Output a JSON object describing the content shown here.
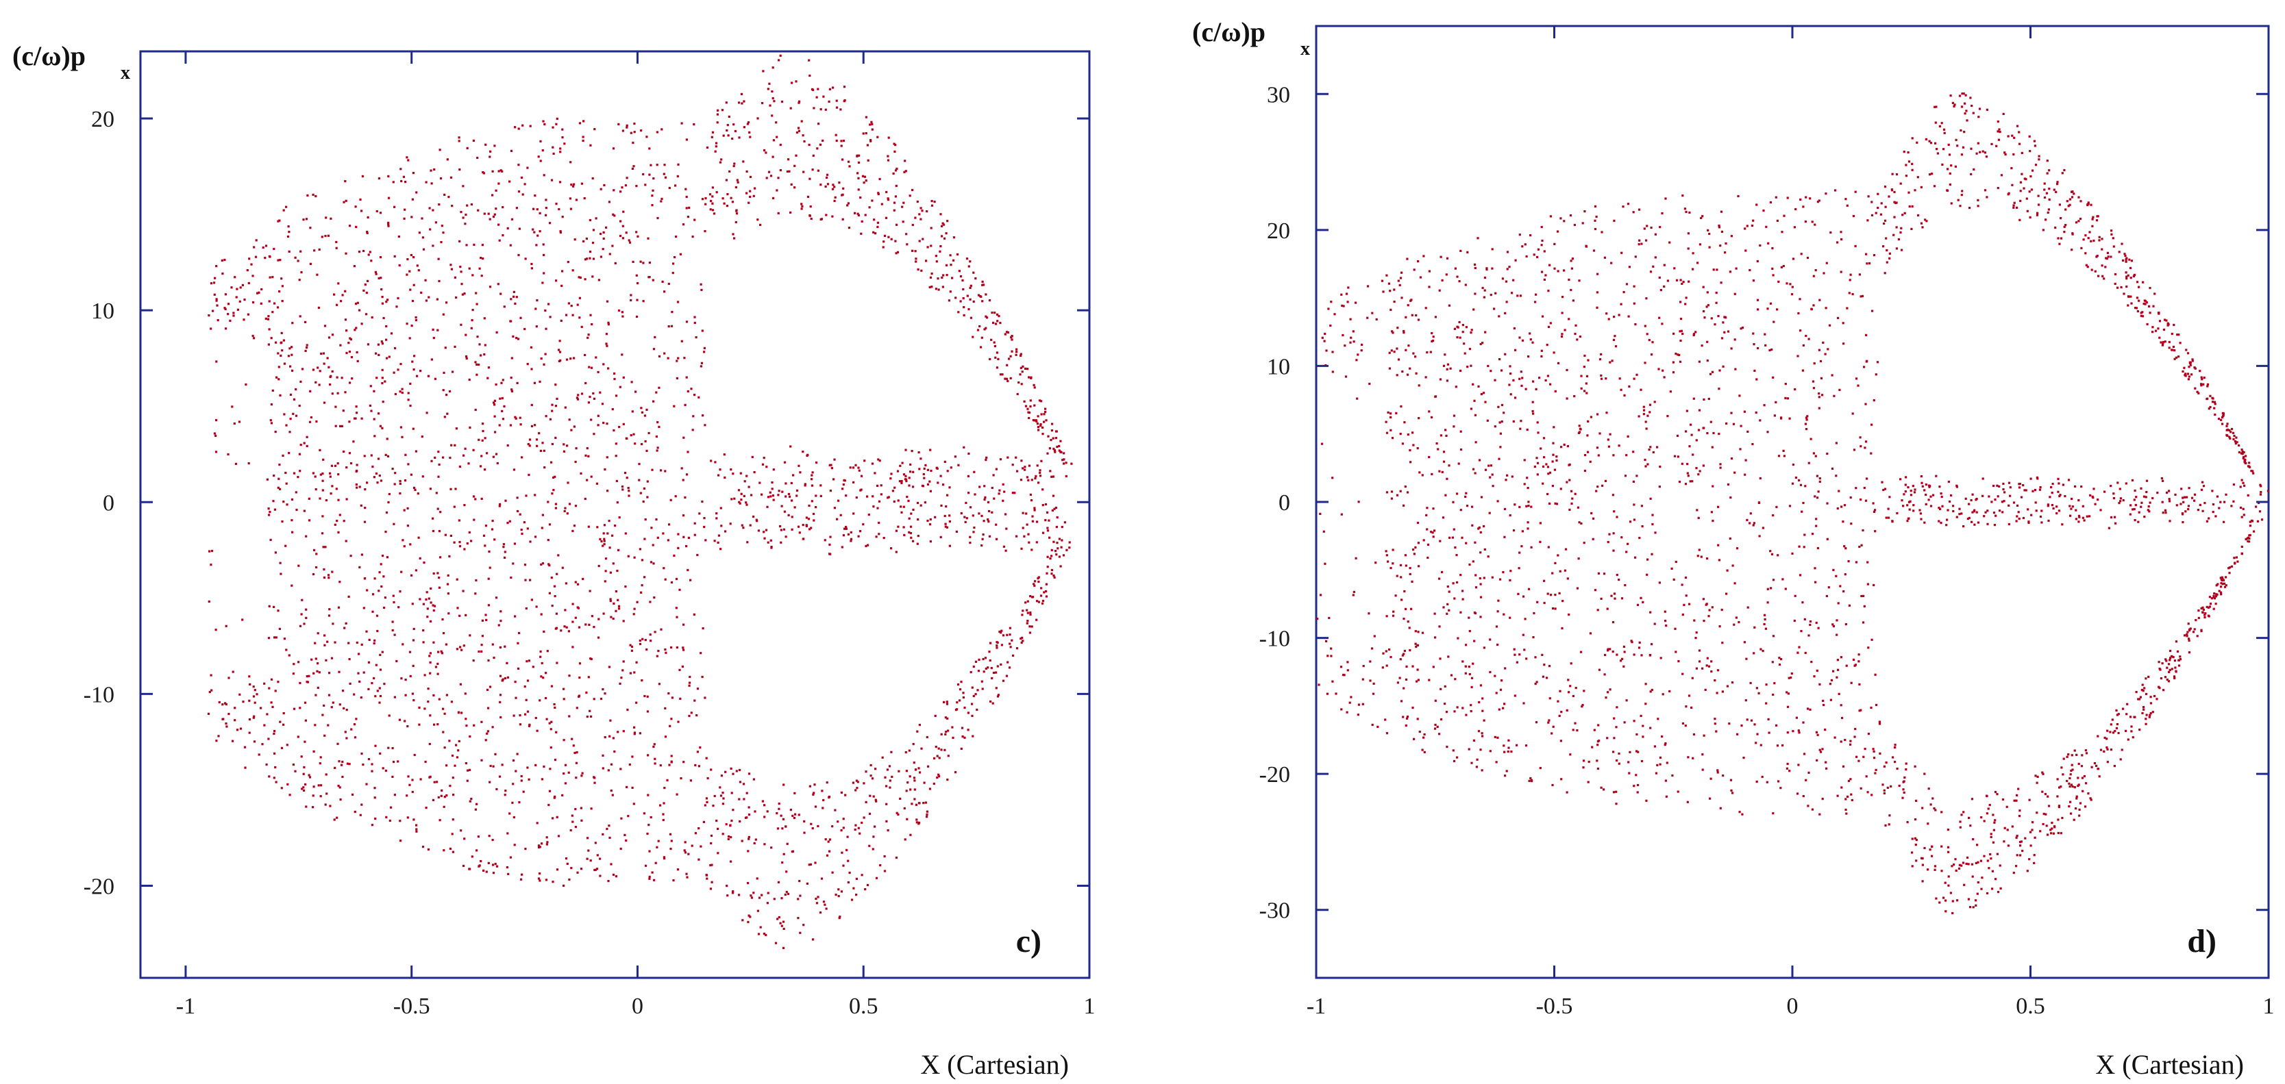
{
  "chart_data": [
    {
      "type": "scatter",
      "panel_label": "c)",
      "ylabel": "(c/ω)p",
      "ylabel_sub": "x",
      "xlabel": "X (Cartesian)",
      "xlim": [
        -1.1,
        1.0
      ],
      "ylim": [
        -24.8,
        23.5
      ],
      "xticks": [
        -1,
        -0.5,
        0,
        0.5,
        1
      ],
      "yticks": [
        -20,
        -10,
        0,
        10,
        20
      ],
      "xtick_labels": [
        "-1",
        "-0.5",
        "0",
        "0.5",
        "1"
      ],
      "ytick_labels": [
        "-20",
        "-10",
        "0",
        "10",
        "20"
      ],
      "point_color": "#b3001b",
      "axis_color": "#1f2a8c",
      "distribution": {
        "core_x_range": [
          -0.95,
          0.15
        ],
        "core_p_range": [
          -20,
          20
        ],
        "lobes_p_peak": 24,
        "lobes_x_peak": 0.32,
        "center_jet_x_range": [
          0.15,
          0.95
        ],
        "center_jet_p_halfwidth": 3
      }
    },
    {
      "type": "scatter",
      "panel_label": "d)",
      "ylabel": "(c/ω)p",
      "ylabel_sub": "x",
      "xlabel": "X (Cartesian)",
      "xlim": [
        -1.0,
        1.0
      ],
      "ylim": [
        -35,
        35
      ],
      "xticks": [
        -1,
        -0.5,
        0,
        0.5,
        1
      ],
      "yticks": [
        -30,
        -20,
        -10,
        0,
        10,
        20,
        30
      ],
      "xtick_labels": [
        "-1",
        "-0.5",
        "0",
        "0.5",
        "1"
      ],
      "ytick_labels": [
        "-30",
        "-20",
        "-10",
        "0",
        "10",
        "20",
        "30"
      ],
      "point_color": "#b3001b",
      "axis_color": "#1f2a8c",
      "distribution": {
        "core_x_range": [
          -1.0,
          0.18
        ],
        "core_p_range": [
          -23,
          23
        ],
        "lobes_p_peak": 31,
        "lobes_x_peak": 0.33,
        "center_jet_x_range": [
          0.18,
          1.0
        ],
        "center_jet_p_halfwidth": 2
      }
    }
  ]
}
